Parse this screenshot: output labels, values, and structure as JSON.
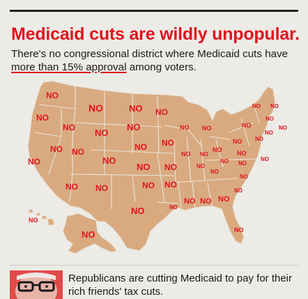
{
  "headline": "Medicaid cuts are wildly unpopular.",
  "subhead": {
    "before": "There's no congressional district where Medicaid cuts have ",
    "highlight": "more than 15% approval",
    "after": " among voters."
  },
  "map": {
    "land_color": "#d9aa80",
    "label_color": "#e0141e",
    "labels": [
      {
        "state": "WA",
        "text": "NO"
      },
      {
        "state": "OR",
        "text": "NO"
      },
      {
        "state": "ID",
        "text": "NO"
      },
      {
        "state": "MT",
        "text": "NO"
      },
      {
        "state": "ND",
        "text": "NO"
      },
      {
        "state": "MN",
        "text": "NO"
      },
      {
        "state": "WY",
        "text": "NO"
      },
      {
        "state": "SD",
        "text": "NO"
      },
      {
        "state": "WI",
        "text": "NO"
      },
      {
        "state": "MI",
        "text": "NO"
      },
      {
        "state": "NY",
        "text": "NO"
      },
      {
        "state": "VT",
        "text": "NO"
      },
      {
        "state": "NH",
        "text": "NO"
      },
      {
        "state": "MA",
        "text": "NO"
      },
      {
        "state": "NV",
        "text": "NO"
      },
      {
        "state": "UT",
        "text": "NO"
      },
      {
        "state": "NE",
        "text": "NO"
      },
      {
        "state": "IA",
        "text": "NO"
      },
      {
        "state": "CA",
        "text": "NO"
      },
      {
        "state": "CO",
        "text": "NO"
      },
      {
        "state": "KS",
        "text": "NO"
      },
      {
        "state": "IL",
        "text": "NO"
      },
      {
        "state": "IN",
        "text": "NO"
      },
      {
        "state": "OH",
        "text": "NO"
      },
      {
        "state": "PA",
        "text": "NO"
      },
      {
        "state": "NJ",
        "text": "NO"
      },
      {
        "state": "CT",
        "text": "NO"
      },
      {
        "state": "RI",
        "text": "NO"
      },
      {
        "state": "MO",
        "text": "NO"
      },
      {
        "state": "KY",
        "text": "NO"
      },
      {
        "state": "WV",
        "text": "NO"
      },
      {
        "state": "VA",
        "text": "NO"
      },
      {
        "state": "MD",
        "text": "NO"
      },
      {
        "state": "DE",
        "text": "NO"
      },
      {
        "state": "AZ",
        "text": "NO"
      },
      {
        "state": "NM",
        "text": "NO"
      },
      {
        "state": "OK",
        "text": "NO"
      },
      {
        "state": "AR",
        "text": "NO"
      },
      {
        "state": "TN",
        "text": "NO"
      },
      {
        "state": "NC",
        "text": "NO"
      },
      {
        "state": "SC",
        "text": "NO"
      },
      {
        "state": "TX",
        "text": "NO"
      },
      {
        "state": "LA",
        "text": "NO"
      },
      {
        "state": "MS",
        "text": "NO"
      },
      {
        "state": "AL",
        "text": "NO"
      },
      {
        "state": "GA",
        "text": "NO"
      },
      {
        "state": "FL",
        "text": "NO"
      },
      {
        "state": "AK",
        "text": "NO"
      },
      {
        "state": "HI",
        "text": "NO"
      }
    ]
  },
  "footer": {
    "text": "Republicans are cutting Medicaid to pay for their rich friends' tax cuts."
  },
  "colors": {
    "accent": "#e0141e",
    "background": "#ecebe6",
    "avatar_bg": "#e14a4a"
  }
}
